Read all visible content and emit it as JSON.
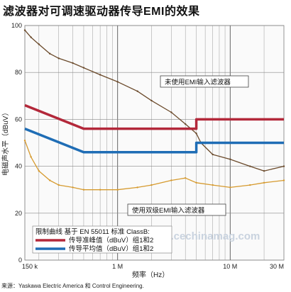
{
  "title": "滤波器对可调速驱动器传导EMI的效果",
  "source": "来源：Yaskawa Electric America 和 Control Engineering.",
  "watermark": "www.cechinamag.com",
  "chart_data": {
    "type": "line",
    "xscale": "log",
    "xlim": [
      150000,
      30000000
    ],
    "ylim": [
      0,
      100
    ],
    "ylabel": "电磁声水平（dBuV）",
    "xlabel": "频率（Hz）",
    "x_tick_labels": [
      {
        "value": 150000,
        "label": "150 k"
      },
      {
        "value": 1000000,
        "label": "1 M"
      },
      {
        "value": 10000000,
        "label": "10 M"
      },
      {
        "value": 30000000,
        "label": "30 M"
      }
    ],
    "y_ticks": [
      0,
      20,
      40,
      60,
      80,
      100
    ],
    "grid": true,
    "colors": {
      "quasi_peak": "#b3283a",
      "average": "#1f6db5",
      "unfiltered": "#6b4a2b",
      "filtered": "#d69a2e"
    },
    "series": [
      {
        "name": "传导准峰值（dBuV）组1和2",
        "role": "limit",
        "x": [
          150000,
          500000,
          500000,
          5000000,
          5000000,
          30000000
        ],
        "y": [
          66,
          56,
          56,
          56,
          60,
          60
        ]
      },
      {
        "name": "传导平均值（dBuV）组1和2",
        "role": "limit",
        "x": [
          150000,
          500000,
          500000,
          5000000,
          5000000,
          30000000
        ],
        "y": [
          56,
          46,
          46,
          46,
          50,
          50
        ]
      },
      {
        "name": "未使用EMI输入滤波器",
        "role": "measured",
        "x": [
          150000,
          170000,
          200000,
          250000,
          300000,
          400000,
          500000,
          700000,
          1000000,
          1500000,
          2000000,
          3000000,
          4000000,
          5000000,
          5500000,
          7000000,
          10000000,
          15000000,
          20000000,
          30000000
        ],
        "y": [
          98,
          95,
          92,
          88,
          86,
          84,
          82,
          79,
          76,
          72,
          68,
          63,
          58,
          54,
          50,
          45,
          43,
          40,
          38,
          40
        ]
      },
      {
        "name": "使用双级EMI输入滤波器",
        "role": "measured",
        "x": [
          150000,
          170000,
          200000,
          250000,
          300000,
          400000,
          500000,
          700000,
          1000000,
          1500000,
          2000000,
          3000000,
          4000000,
          5000000,
          7000000,
          10000000,
          15000000,
          20000000,
          30000000
        ],
        "y": [
          51,
          44,
          38,
          34,
          32,
          31,
          30,
          30,
          30,
          31,
          32,
          34,
          35,
          33,
          32,
          31,
          32,
          33,
          34
        ]
      }
    ],
    "annotations": [
      {
        "text": "未使用EMI输入滤波器",
        "target": 2
      },
      {
        "text": "使用双级EMI输入滤波器",
        "target": 3
      }
    ],
    "legend": {
      "title": "限制曲线 基于 EN 55011 标准 ClassB:",
      "position": "bottom-left",
      "items": [
        {
          "label": "传导准峰值（dBuV）组1和2",
          "color": "#b3283a"
        },
        {
          "label": "传导平均值（dBuV）组1和2",
          "color": "#1f6db5"
        }
      ]
    }
  }
}
